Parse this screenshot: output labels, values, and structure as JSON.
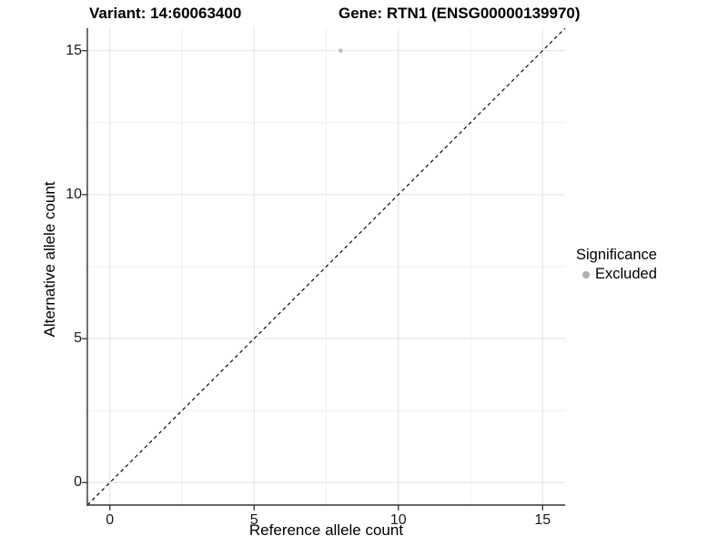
{
  "header": {
    "variant_title": "Variant: 14:60063400",
    "gene_title": "Gene: RTN1 (ENSG00000139970)"
  },
  "axes": {
    "x_label": "Reference allele count",
    "y_label": "Alternative allele count"
  },
  "legend": {
    "title": "Significance",
    "items": [
      {
        "label": "Excluded",
        "color": "#b0b0b0"
      }
    ]
  },
  "chart_data": {
    "type": "scatter",
    "title": "Variant: 14:60063400 | Gene: RTN1 (ENSG00000139970)",
    "xlabel": "Reference allele count",
    "ylabel": "Alternative allele count",
    "xlim": [
      -0.78,
      15.78
    ],
    "ylim": [
      -0.78,
      15.78
    ],
    "x_ticks": [
      0,
      5,
      10,
      15
    ],
    "y_ticks": [
      0,
      5,
      10,
      15
    ],
    "minor_gridlines": [
      2.5,
      7.5,
      12.5
    ],
    "grid": true,
    "legend_position": "right",
    "series": [
      {
        "name": "Excluded",
        "color": "#bdbdbd",
        "points": [
          [
            8,
            15
          ]
        ]
      }
    ],
    "reference_line": {
      "type": "identity_y_equals_x",
      "from": [
        -0.78,
        -0.78
      ],
      "to": [
        15.78,
        15.78
      ],
      "style": "dashed",
      "color": "#000000"
    }
  },
  "colors": {
    "background": "#ffffff",
    "grid_major": "#e4e4e4",
    "grid_minor": "#efefef",
    "axis_line": "#333333",
    "tick_text": "#1a1a1a",
    "point": "#bdbdbd"
  }
}
